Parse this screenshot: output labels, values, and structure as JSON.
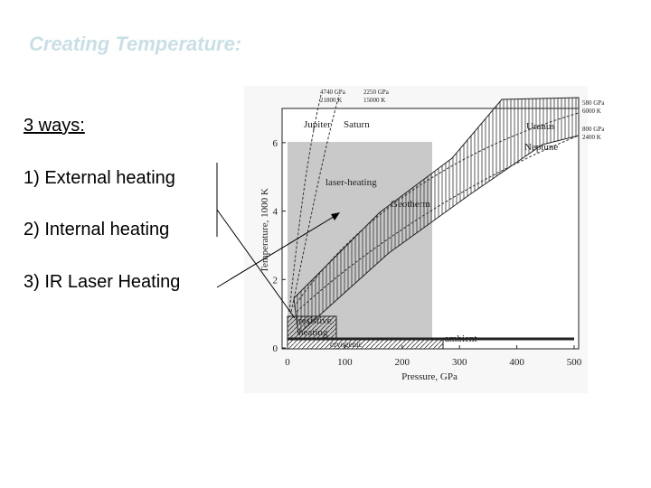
{
  "slide": {
    "title": "Creating Temperature:",
    "items": [
      "3 ways:",
      "1) External heating",
      "2) Internal heating",
      "3) IR Laser Heating"
    ]
  },
  "figure": {
    "xlabel": "Pressure, GPa",
    "ylabel": "Temperature, 1000 K",
    "xlim": [
      0,
      500
    ],
    "ylim": [
      0,
      7
    ],
    "xticks": [
      0,
      100,
      200,
      300,
      400,
      500
    ],
    "yticks": [
      0,
      2,
      4,
      6
    ],
    "labels": [
      "4740 GPa",
      "21800 K",
      "2250 GPa",
      "15000 K",
      "580 GPa",
      "6000 K",
      "800 GPa",
      "2400 K",
      "Jupiter",
      "Saturn",
      "Uranus",
      "Neptune",
      "laser-heating",
      "Geotherm",
      "resistive",
      "heating",
      "cryogenic",
      "ambient"
    ]
  }
}
